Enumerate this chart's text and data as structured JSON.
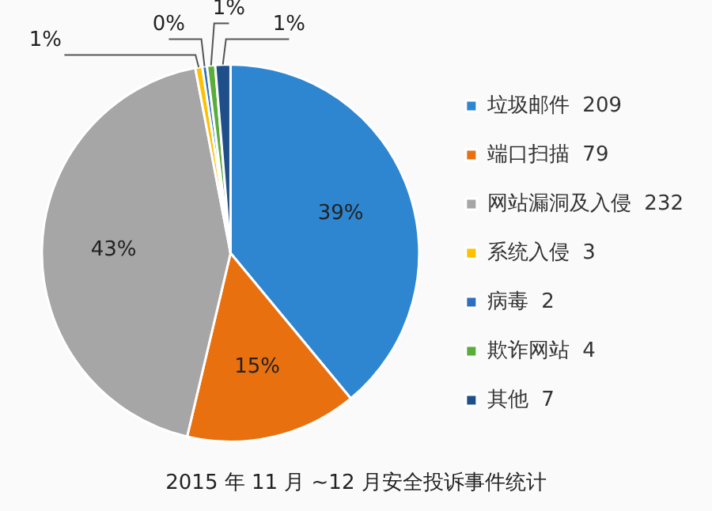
{
  "chart_data": {
    "type": "pie",
    "title": "2015 年 11 月 ~12 月安全投诉事件统计",
    "categories": [
      "垃圾邮件  209",
      "端口扫描  79",
      "网站漏洞及入侵  232",
      "系统入侵  3",
      "病毒  2",
      "欺诈网站  4",
      "其他  7"
    ],
    "values": [
      39.0,
      14.7,
      43.3,
      0.6,
      0.4,
      0.7,
      1.3
    ],
    "colors": [
      "#2e86d0",
      "#e8700f",
      "#a6a6a6",
      "#ffc000",
      "#2f6fbf",
      "#5aad3a",
      "#1f4f8a"
    ],
    "value_labels": [
      "39%",
      "15%",
      "43%",
      "1%",
      "0%",
      "1%",
      "1%"
    ],
    "legend": "right"
  }
}
